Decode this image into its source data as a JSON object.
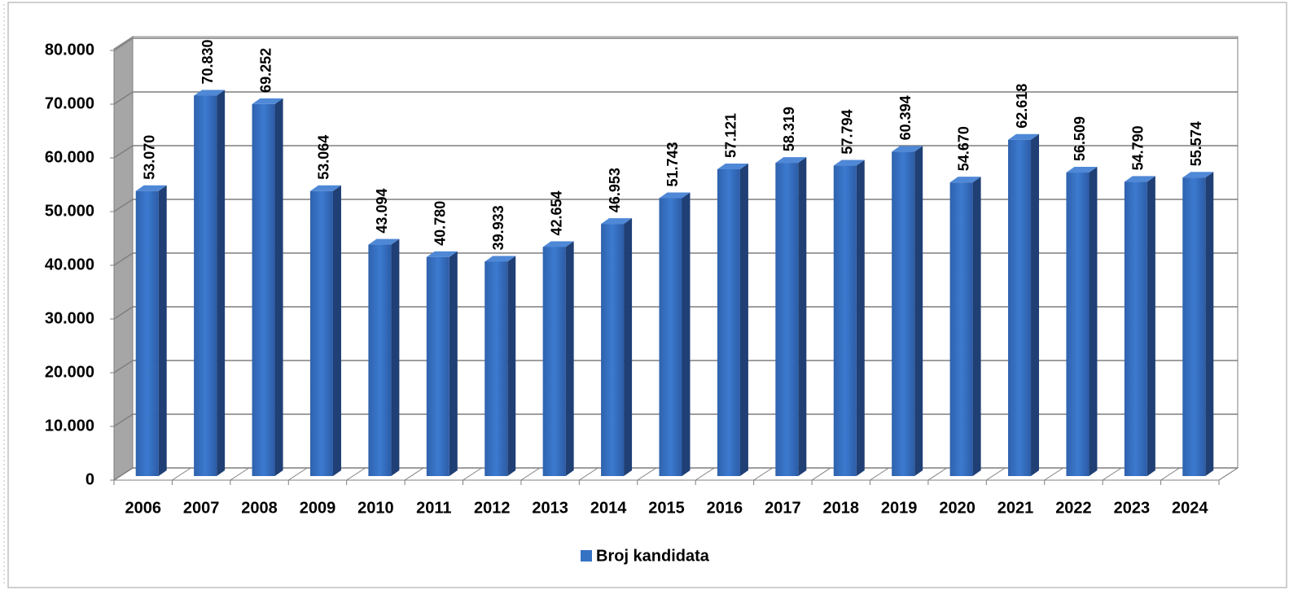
{
  "chart_data": {
    "type": "bar",
    "categories": [
      "2006",
      "2007",
      "2008",
      "2009",
      "2010",
      "2011",
      "2012",
      "2013",
      "2014",
      "2015",
      "2016",
      "2017",
      "2018",
      "2019",
      "2020",
      "2021",
      "2022",
      "2023",
      "2024"
    ],
    "series": [
      {
        "name": "Broj kandidata",
        "color": "#3672c4",
        "values": [
          53070,
          70830,
          69252,
          53064,
          43094,
          40780,
          39933,
          42654,
          46953,
          51743,
          57121,
          58319,
          57794,
          60394,
          54670,
          62618,
          56509,
          54790,
          55574
        ],
        "value_labels": [
          "53.070",
          "70.830",
          "69.252",
          "53.064",
          "43.094",
          "40.780",
          "39.933",
          "42.654",
          "46.953",
          "51.743",
          "57.121",
          "58.319",
          "57.794",
          "60.394",
          "54.670",
          "62.618",
          "56.509",
          "54.790",
          "55.574"
        ]
      }
    ],
    "ylim": [
      0,
      80000
    ],
    "yticks": [
      0,
      {
        "value": 10000,
        "label": "10.000"
      },
      {
        "value": 20000,
        "label": "20.000"
      },
      {
        "value": 30000,
        "label": "30.000"
      },
      {
        "value": 40000,
        "label": "40.000"
      },
      {
        "value": 50000,
        "label": "50.000"
      },
      {
        "value": 60000,
        "label": "60.000"
      },
      {
        "value": 70000,
        "label": "70.000"
      },
      {
        "value": 80000,
        "label": "80.000"
      }
    ],
    "grid": true,
    "legend": "bottom"
  }
}
